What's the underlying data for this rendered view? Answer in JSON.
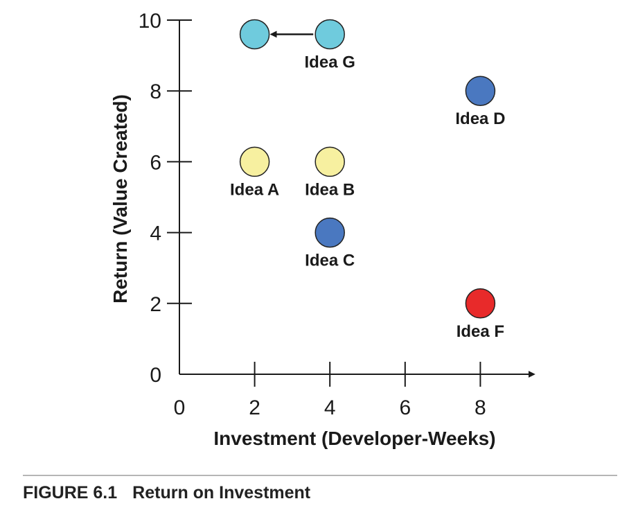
{
  "chart_data": {
    "type": "scatter",
    "xlabel": "Investment (Developer-Weeks)",
    "ylabel": "Return (Value Created)",
    "xlim": [
      0,
      9.5
    ],
    "ylim": [
      0,
      10
    ],
    "xticks": [
      0,
      2,
      4,
      6,
      8
    ],
    "yticks": [
      0,
      2,
      4,
      6,
      8,
      10
    ],
    "grid": false,
    "legend": "none",
    "points": [
      {
        "label": "Idea A",
        "x": 2,
        "y": 6,
        "color": "#f7f0a0"
      },
      {
        "label": "Idea B",
        "x": 4,
        "y": 6,
        "color": "#f7f0a0"
      },
      {
        "label": "Idea C",
        "x": 4,
        "y": 4,
        "color": "#4a78c0"
      },
      {
        "label": "Idea D",
        "x": 8,
        "y": 8,
        "color": "#4a78c0"
      },
      {
        "label": "Idea F",
        "x": 8,
        "y": 2,
        "color": "#e82a2a"
      },
      {
        "label": "Idea G",
        "x": 4,
        "y": 9.6,
        "color": "#6fcbdd"
      },
      {
        "label": "",
        "x": 2,
        "y": 9.6,
        "color": "#6fcbdd"
      }
    ],
    "annotations": [
      {
        "type": "arrow",
        "from": [
          4,
          9.6
        ],
        "to": [
          2,
          9.6
        ]
      }
    ]
  },
  "caption": {
    "figure_number": "FIGURE 6.1",
    "title": "Return on Investment"
  }
}
